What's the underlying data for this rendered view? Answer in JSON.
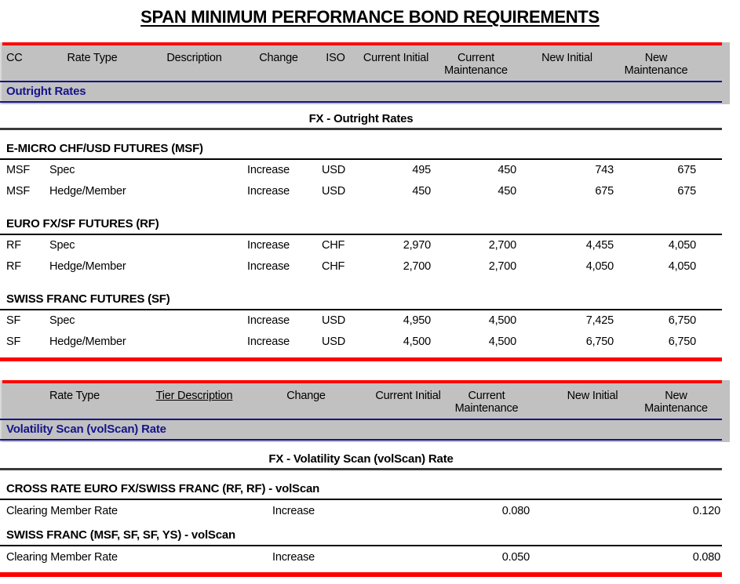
{
  "page": {
    "title": "SPAN MINIMUM PERFORMANCE BOND REQUIREMENTS"
  },
  "colors": {
    "accent_red": "#ff0000",
    "navy": "#14148c",
    "header_gray": "#c1c1c1"
  },
  "table1": {
    "columns": [
      "CC",
      "Rate Type",
      "Description",
      "Change",
      "ISO",
      "Current Initial",
      "Current Maintenance",
      "New Initial",
      "New Maintenance"
    ],
    "band_label": "Outright Rates",
    "section_title": "FX - Outright Rates",
    "groups": [
      {
        "name": "E-MICRO CHF/USD FUTURES (MSF)",
        "rows": [
          {
            "cc": "MSF",
            "rate_type": "Spec",
            "description": "",
            "change": "Increase",
            "iso": "USD",
            "current_initial": "495",
            "current_maintenance": "450",
            "new_initial": "743",
            "new_maintenance": "675"
          },
          {
            "cc": "MSF",
            "rate_type": "Hedge/Member",
            "description": "",
            "change": "Increase",
            "iso": "USD",
            "current_initial": "450",
            "current_maintenance": "450",
            "new_initial": "675",
            "new_maintenance": "675"
          }
        ]
      },
      {
        "name": "EURO FX/SF FUTURES (RF)",
        "rows": [
          {
            "cc": "RF",
            "rate_type": "Spec",
            "description": "",
            "change": "Increase",
            "iso": "CHF",
            "current_initial": "2,970",
            "current_maintenance": "2,700",
            "new_initial": "4,455",
            "new_maintenance": "4,050"
          },
          {
            "cc": "RF",
            "rate_type": "Hedge/Member",
            "description": "",
            "change": "Increase",
            "iso": "CHF",
            "current_initial": "2,700",
            "current_maintenance": "2,700",
            "new_initial": "4,050",
            "new_maintenance": "4,050"
          }
        ]
      },
      {
        "name": "SWISS FRANC FUTURES (SF)",
        "rows": [
          {
            "cc": "SF",
            "rate_type": "Spec",
            "description": "",
            "change": "Increase",
            "iso": "USD",
            "current_initial": "4,950",
            "current_maintenance": "4,500",
            "new_initial": "7,425",
            "new_maintenance": "6,750"
          },
          {
            "cc": "SF",
            "rate_type": "Hedge/Member",
            "description": "",
            "change": "Increase",
            "iso": "USD",
            "current_initial": "4,500",
            "current_maintenance": "4,500",
            "new_initial": "6,750",
            "new_maintenance": "6,750"
          }
        ]
      }
    ]
  },
  "table2": {
    "columns": [
      "Rate Type",
      "Tier Description",
      "Change",
      "Current Initial",
      "Current Maintenance",
      "New Initial",
      "New Maintenance"
    ],
    "band_label": "Volatility Scan (volScan) Rate",
    "section_title": "FX - Volatility Scan (volScan) Rate",
    "groups": [
      {
        "name": "CROSS RATE EURO FX/SWISS FRANC (RF, RF) - volScan",
        "rows": [
          {
            "rate_type": "Clearing Member Rate",
            "tier_description": "",
            "change": "Increase",
            "current_initial": "",
            "current_maintenance": "0.080",
            "new_initial": "",
            "new_maintenance": "0.120"
          }
        ]
      },
      {
        "name": "SWISS FRANC (MSF, SF, SF, YS) - volScan",
        "rows": [
          {
            "rate_type": "Clearing Member Rate",
            "tier_description": "",
            "change": "Increase",
            "current_initial": "",
            "current_maintenance": "0.050",
            "new_initial": "",
            "new_maintenance": "0.080"
          }
        ]
      }
    ]
  }
}
